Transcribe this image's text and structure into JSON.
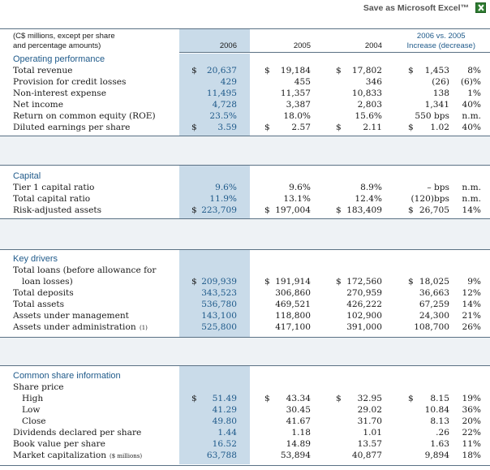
{
  "toolbar": {
    "excel_label": "Save as Microsoft Excel™"
  },
  "header": {
    "units_line1": "(C$ millions, except per share",
    "units_line2": "and percentage amounts)",
    "col_2006": "2006",
    "col_2005": "2005",
    "col_2004": "2004",
    "change_line1": "2006 vs. 2005",
    "change_line2": "Increase (decrease)"
  },
  "sections": {
    "operating": {
      "title": "Operating performance",
      "rows": [
        {
          "label": "Total revenue",
          "d06": "$",
          "v06": "20,637",
          "d05": "$",
          "v05": "19,184",
          "d04": "$",
          "v04": "17,802",
          "dch": "$",
          "chg": "1,453",
          "pct": "8%"
        },
        {
          "label": "Provision for credit losses",
          "v06": "429",
          "v05": "455",
          "v04": "346",
          "chg": "(26)",
          "pct": "(6)%"
        },
        {
          "label": "Non-interest expense",
          "v06": "11,495",
          "v05": "11,357",
          "v04": "10,833",
          "chg": "138",
          "pct": "1%"
        },
        {
          "label": "Net income",
          "v06": "4,728",
          "v05": "3,387",
          "v04": "2,803",
          "chg": "1,341",
          "pct": "40%"
        },
        {
          "label": "Return on common equity (ROE)",
          "v06": "23.5%",
          "v05": "18.0%",
          "v04": "15.6%",
          "chg": "550 bps",
          "pct": "n.m."
        },
        {
          "label": "Diluted earnings per share",
          "d06": "$",
          "v06": "3.59",
          "d05": "$",
          "v05": "2.57",
          "d04": "$",
          "v04": "2.11",
          "dch": "$",
          "chg": "1.02",
          "pct": "40%"
        }
      ]
    },
    "capital": {
      "title": "Capital",
      "rows": [
        {
          "label": "Tier 1 capital ratio",
          "v06": "9.6%",
          "v05": "9.6%",
          "v04": "8.9%",
          "chg": "– bps",
          "pct": "n.m."
        },
        {
          "label": "Total capital ratio",
          "v06": "11.9%",
          "v05": "13.1%",
          "v04": "12.4%",
          "chg": "(120)bps",
          "pct": "n.m."
        },
        {
          "label": "Risk-adjusted assets",
          "d06": "$",
          "v06": "223,709",
          "d05": "$",
          "v05": "197,004",
          "d04": "$",
          "v04": "183,409",
          "dch": "$",
          "chg": "26,705",
          "pct": "14%"
        }
      ]
    },
    "drivers": {
      "title": "Key drivers",
      "loans_label1": "Total loans (before allowance for",
      "rows": [
        {
          "label": "loan losses)",
          "d06": "$",
          "v06": "209,939",
          "d05": "$",
          "v05": "191,914",
          "d04": "$",
          "v04": "172,560",
          "dch": "$",
          "chg": "18,025",
          "pct": "9%"
        },
        {
          "label": "Total deposits",
          "v06": "343,523",
          "v05": "306,860",
          "v04": "270,959",
          "chg": "36,663",
          "pct": "12%"
        },
        {
          "label": "Total assets",
          "v06": "536,780",
          "v05": "469,521",
          "v04": "426,222",
          "chg": "67,259",
          "pct": "14%"
        },
        {
          "label": "Assets under management",
          "v06": "143,100",
          "v05": "118,800",
          "v04": "102,900",
          "chg": "24,300",
          "pct": "21%"
        },
        {
          "label": "Assets under administration",
          "note": "(1)",
          "v06": "525,800",
          "v05": "417,100",
          "v04": "391,000",
          "chg": "108,700",
          "pct": "26%"
        }
      ]
    },
    "shares": {
      "title": "Common share information",
      "price_label": "Share price",
      "rows": [
        {
          "label": "High",
          "d06": "$",
          "v06": "51.49",
          "d05": "$",
          "v05": "43.34",
          "d04": "$",
          "v04": "32.95",
          "dch": "$",
          "chg": "8.15",
          "pct": "19%"
        },
        {
          "label": "Low",
          "v06": "41.29",
          "v05": "30.45",
          "v04": "29.02",
          "chg": "10.84",
          "pct": "36%"
        },
        {
          "label": "Close",
          "v06": "49.80",
          "v05": "41.67",
          "v04": "31.70",
          "chg": "8.13",
          "pct": "20%"
        },
        {
          "label": "Dividends declared per share",
          "v06": "1.44",
          "v05": "1.18",
          "v04": "1.01",
          "chg": ".26",
          "pct": "22%"
        },
        {
          "label": "Book value per share",
          "v06": "16.52",
          "v05": "14.89",
          "v04": "13.57",
          "chg": "1.63",
          "pct": "11%"
        },
        {
          "label": "Market capitalization",
          "note": "($ millions)",
          "v06": "63,788",
          "v05": "53,894",
          "v04": "40,877",
          "chg": "9,894",
          "pct": "18%"
        }
      ]
    }
  }
}
